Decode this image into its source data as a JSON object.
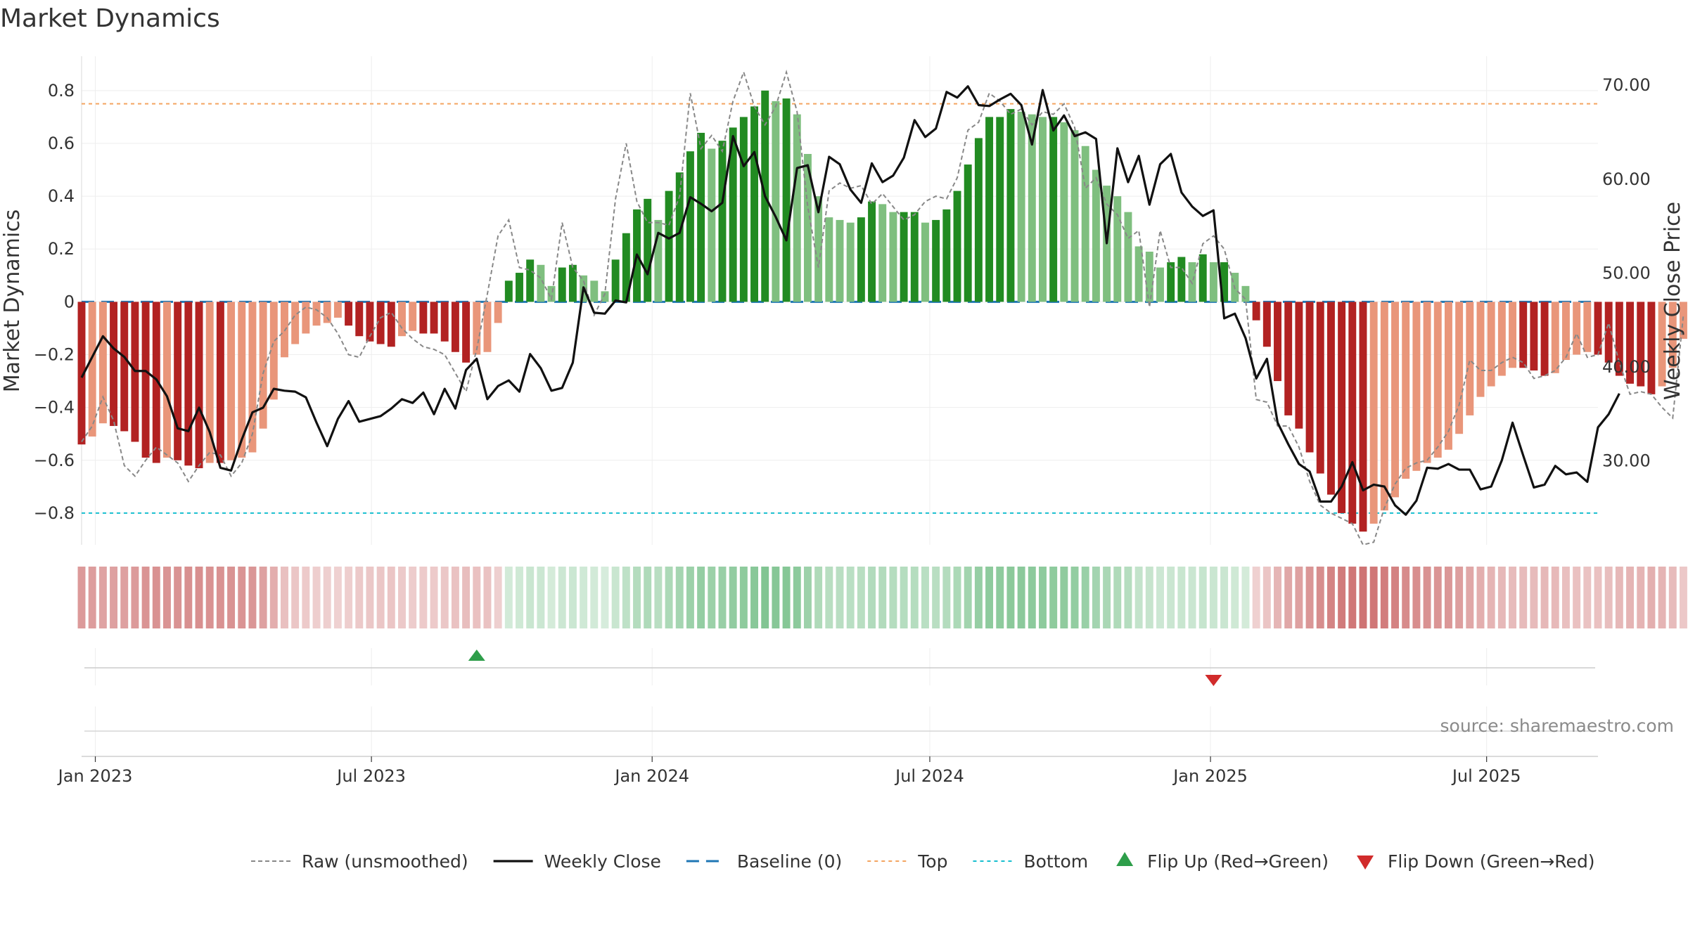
{
  "chart_data": {
    "type": "bar",
    "title": "Market Dynamics",
    "ylabel": "Market Dynamics",
    "y2label": "Weekly Close Price",
    "ylim": [
      -0.92,
      0.93
    ],
    "y2lim": [
      21.0,
      73.0
    ],
    "yticks": [
      "0.8",
      "0.6",
      "0.4",
      "0.2",
      "0",
      "−0.2",
      "−0.4",
      "−0.6",
      "−0.8"
    ],
    "y2ticks": [
      "70.00",
      "60.00",
      "50.00",
      "40.00",
      "30.00"
    ],
    "x_start": "2022-12-23",
    "x_end": "2025-09-12",
    "xticks": [
      {
        "date": "2023-01-01",
        "label": "Jan 2023"
      },
      {
        "date": "2023-07-01",
        "label": "Jul 2023"
      },
      {
        "date": "2024-01-01",
        "label": "Jan 2024"
      },
      {
        "date": "2024-07-01",
        "label": "Jul 2024"
      },
      {
        "date": "2025-01-01",
        "label": "Jan 2025"
      },
      {
        "date": "2025-07-01",
        "label": "Jul 2025"
      }
    ],
    "first_week": "2022-12-23",
    "grid": true,
    "reference_lines": [
      {
        "name": "Baseline (0)",
        "value": 0,
        "color": "#1f77b4",
        "style": "dashed"
      },
      {
        "name": "Top",
        "value": 0.75,
        "color": "#f4a460",
        "style": "dotted"
      },
      {
        "name": "Bottom",
        "value": -0.8,
        "color": "#17becf",
        "style": "dotted"
      }
    ],
    "series": [
      {
        "name": "Market Dynamics",
        "kind": "bar",
        "values": [
          -0.54,
          -0.51,
          -0.46,
          -0.47,
          -0.49,
          -0.53,
          -0.59,
          -0.61,
          -0.59,
          -0.6,
          -0.62,
          -0.63,
          -0.61,
          -0.61,
          -0.6,
          -0.59,
          -0.57,
          -0.48,
          -0.37,
          -0.21,
          -0.16,
          -0.12,
          -0.09,
          -0.08,
          -0.06,
          -0.09,
          -0.13,
          -0.15,
          -0.16,
          -0.17,
          -0.13,
          -0.11,
          -0.12,
          -0.12,
          -0.15,
          -0.19,
          -0.23,
          -0.2,
          -0.19,
          -0.08,
          0.08,
          0.11,
          0.16,
          0.14,
          0.06,
          0.13,
          0.14,
          0.1,
          0.08,
          0.04,
          0.16,
          0.26,
          0.35,
          0.39,
          0.31,
          0.42,
          0.49,
          0.57,
          0.64,
          0.58,
          0.61,
          0.66,
          0.7,
          0.74,
          0.8,
          0.76,
          0.77,
          0.71,
          0.56,
          0.4,
          0.32,
          0.31,
          0.3,
          0.32,
          0.38,
          0.37,
          0.34,
          0.34,
          0.34,
          0.3,
          0.31,
          0.35,
          0.42,
          0.52,
          0.62,
          0.7,
          0.7,
          0.73,
          0.72,
          0.71,
          0.7,
          0.7,
          0.68,
          0.65,
          0.59,
          0.5,
          0.44,
          0.4,
          0.34,
          0.21,
          0.19,
          0.13,
          0.15,
          0.17,
          0.15,
          0.18,
          0.15,
          0.15,
          0.11,
          0.06,
          -0.07,
          -0.17,
          -0.3,
          -0.43,
          -0.48,
          -0.57,
          -0.65,
          -0.73,
          -0.8,
          -0.84,
          -0.87,
          -0.84,
          -0.79,
          -0.74,
          -0.67,
          -0.64,
          -0.61,
          -0.59,
          -0.56,
          -0.5,
          -0.43,
          -0.36,
          -0.32,
          -0.28,
          -0.25,
          -0.25,
          -0.26,
          -0.28,
          -0.27,
          -0.22,
          -0.2,
          -0.19,
          -0.2,
          -0.23,
          -0.28,
          -0.31,
          -0.32,
          -0.35,
          -0.32,
          -0.25,
          -0.14
        ]
      },
      {
        "name": "Raw (unsmoothed)",
        "kind": "line",
        "values": [
          -0.53,
          -0.47,
          -0.36,
          -0.45,
          -0.62,
          -0.66,
          -0.6,
          -0.55,
          -0.58,
          -0.61,
          -0.68,
          -0.62,
          -0.57,
          -0.58,
          -0.66,
          -0.61,
          -0.5,
          -0.27,
          -0.15,
          -0.11,
          -0.05,
          -0.02,
          -0.03,
          -0.06,
          -0.12,
          -0.2,
          -0.21,
          -0.13,
          -0.06,
          -0.04,
          -0.1,
          -0.14,
          -0.17,
          -0.18,
          -0.2,
          -0.27,
          -0.34,
          -0.18,
          0.03,
          0.25,
          0.31,
          0.13,
          0.12,
          0.09,
          0.01,
          0.3,
          0.13,
          0.08,
          -0.05,
          0.03,
          0.39,
          0.6,
          0.38,
          0.3,
          0.3,
          0.29,
          0.4,
          0.79,
          0.58,
          0.63,
          0.57,
          0.76,
          0.87,
          0.74,
          0.67,
          0.74,
          0.87,
          0.72,
          0.36,
          0.13,
          0.42,
          0.45,
          0.43,
          0.44,
          0.37,
          0.41,
          0.36,
          0.31,
          0.33,
          0.38,
          0.4,
          0.39,
          0.47,
          0.65,
          0.68,
          0.79,
          0.76,
          0.71,
          0.73,
          0.67,
          0.72,
          0.71,
          0.75,
          0.66,
          0.43,
          0.47,
          0.37,
          0.33,
          0.24,
          0.27,
          -0.02,
          0.27,
          0.13,
          0.13,
          0.07,
          0.22,
          0.25,
          0.2,
          0.05,
          0.01,
          -0.37,
          -0.38,
          -0.47,
          -0.47,
          -0.55,
          -0.68,
          -0.77,
          -0.8,
          -0.82,
          -0.84,
          -0.92,
          -0.91,
          -0.78,
          -0.69,
          -0.63,
          -0.61,
          -0.6,
          -0.55,
          -0.49,
          -0.39,
          -0.22,
          -0.26,
          -0.26,
          -0.23,
          -0.21,
          -0.23,
          -0.29,
          -0.28,
          -0.26,
          -0.21,
          -0.12,
          -0.21,
          -0.2,
          -0.08,
          -0.23,
          -0.35,
          -0.34,
          -0.35,
          -0.4,
          -0.44,
          -0.05,
          0.02
        ]
      },
      {
        "name": "Weekly Close",
        "kind": "line",
        "axis": "right",
        "values": [
          38.8,
          41.0,
          43.2,
          41.9,
          41.0,
          39.5,
          39.5,
          38.6,
          36.8,
          33.4,
          33.1,
          35.6,
          33.0,
          29.2,
          28.9,
          32.2,
          35.1,
          35.6,
          37.6,
          37.4,
          37.3,
          36.7,
          34.0,
          31.5,
          34.4,
          36.3,
          34.1,
          34.4,
          34.7,
          35.5,
          36.5,
          36.1,
          37.2,
          34.9,
          37.6,
          35.5,
          39.6,
          40.8,
          36.5,
          37.9,
          38.5,
          37.3,
          41.3,
          39.8,
          37.4,
          37.7,
          40.4,
          48.4,
          45.7,
          45.6,
          47.0,
          46.8,
          51.9,
          49.8,
          54.2,
          53.6,
          54.2,
          58.0,
          57.3,
          56.5,
          57.4,
          64.5,
          61.3,
          62.8,
          58.1,
          55.9,
          53.4,
          61.1,
          61.4,
          56.4,
          62.3,
          61.5,
          58.8,
          57.4,
          61.6,
          59.6,
          60.3,
          62.2,
          66.2,
          64.4,
          65.3,
          69.2,
          68.6,
          69.8,
          67.8,
          67.7,
          68.4,
          69.0,
          67.8,
          63.6,
          69.4,
          65.1,
          66.7,
          64.5,
          64.9,
          64.2,
          53.1,
          63.2,
          59.6,
          62.4,
          57.2,
          61.5,
          62.6,
          58.5,
          57.0,
          56.0,
          56.6,
          45.1,
          45.6,
          43.0,
          38.7,
          40.8,
          34.0,
          31.7,
          29.6,
          28.8,
          25.6,
          25.6,
          27.2,
          29.8,
          26.8,
          27.4,
          27.2,
          25.2,
          24.2,
          25.7,
          29.2,
          29.1,
          29.6,
          29.0,
          29.0,
          26.9,
          27.2,
          30.0,
          34.0,
          30.5,
          27.1,
          27.4,
          29.4,
          28.5,
          28.7,
          27.7,
          33.5,
          34.9,
          37.1
        ]
      }
    ],
    "trend_strip": {
      "values": [
        -0.54,
        -0.51,
        -0.46,
        -0.47,
        -0.49,
        -0.53,
        -0.59,
        -0.61,
        -0.59,
        -0.6,
        -0.62,
        -0.63,
        -0.61,
        -0.61,
        -0.6,
        -0.59,
        -0.57,
        -0.48,
        -0.37,
        -0.21,
        -0.16,
        -0.12,
        -0.09,
        -0.08,
        -0.06,
        -0.09,
        -0.13,
        -0.15,
        -0.16,
        -0.17,
        -0.13,
        -0.11,
        -0.12,
        -0.12,
        -0.15,
        -0.19,
        -0.23,
        -0.2,
        -0.19,
        -0.08,
        0.08,
        0.11,
        0.16,
        0.14,
        0.06,
        0.13,
        0.14,
        0.1,
        0.08,
        0.04,
        0.16,
        0.26,
        0.35,
        0.39,
        0.31,
        0.42,
        0.49,
        0.57,
        0.64,
        0.58,
        0.61,
        0.66,
        0.7,
        0.74,
        0.8,
        0.76,
        0.77,
        0.71,
        0.56,
        0.4,
        0.32,
        0.31,
        0.3,
        0.32,
        0.38,
        0.37,
        0.34,
        0.34,
        0.34,
        0.3,
        0.31,
        0.35,
        0.42,
        0.52,
        0.62,
        0.7,
        0.7,
        0.73,
        0.72,
        0.71,
        0.7,
        0.7,
        0.68,
        0.65,
        0.59,
        0.5,
        0.44,
        0.4,
        0.34,
        0.21,
        0.19,
        0.13,
        0.15,
        0.17,
        0.15,
        0.18,
        0.15,
        0.15,
        0.11,
        0.06,
        -0.07,
        -0.17,
        -0.3,
        -0.43,
        -0.48,
        -0.57,
        -0.65,
        -0.73,
        -0.8,
        -0.84,
        -0.87,
        -0.84,
        -0.79,
        -0.74,
        -0.67,
        -0.64,
        -0.61,
        -0.59,
        -0.56,
        -0.5,
        -0.43,
        -0.36,
        -0.32,
        -0.28,
        -0.25,
        -0.25,
        -0.26,
        -0.28,
        -0.27,
        -0.22,
        -0.2,
        -0.19,
        -0.2,
        -0.23,
        -0.28,
        -0.31,
        -0.32,
        -0.35,
        -0.32,
        -0.25,
        -0.14
      ]
    },
    "events": [
      {
        "type": "flip_up",
        "date": "2023-09-08"
      },
      {
        "type": "flip_down",
        "date": "2025-01-03"
      }
    ],
    "legend": {
      "placement": "bottom",
      "items": [
        {
          "label": "Raw (unsmoothed)",
          "marker": "dashed-line",
          "color": "#888888"
        },
        {
          "label": "Weekly Close",
          "marker": "line",
          "color": "#111111"
        },
        {
          "label": "Baseline (0)",
          "marker": "dashed-line",
          "color": "#1f77b4"
        },
        {
          "label": "Top",
          "marker": "dotted-line",
          "color": "#f4a460"
        },
        {
          "label": "Bottom",
          "marker": "dotted-line",
          "color": "#17becf"
        },
        {
          "label": "Flip Up (Red→Green)",
          "marker": "triangle-up",
          "color": "#2e9e4a"
        },
        {
          "label": "Flip Down (Green→Red)",
          "marker": "triangle-down",
          "color": "#d12b2b"
        }
      ]
    },
    "source": "source: sharemaestro.com",
    "colors": {
      "pos_strong": "#228b22",
      "pos_weak": "#7fbf7f",
      "neg_strong": "#b22222",
      "neg_weak": "#e9967a",
      "raw": "#888888",
      "close": "#111111"
    }
  }
}
